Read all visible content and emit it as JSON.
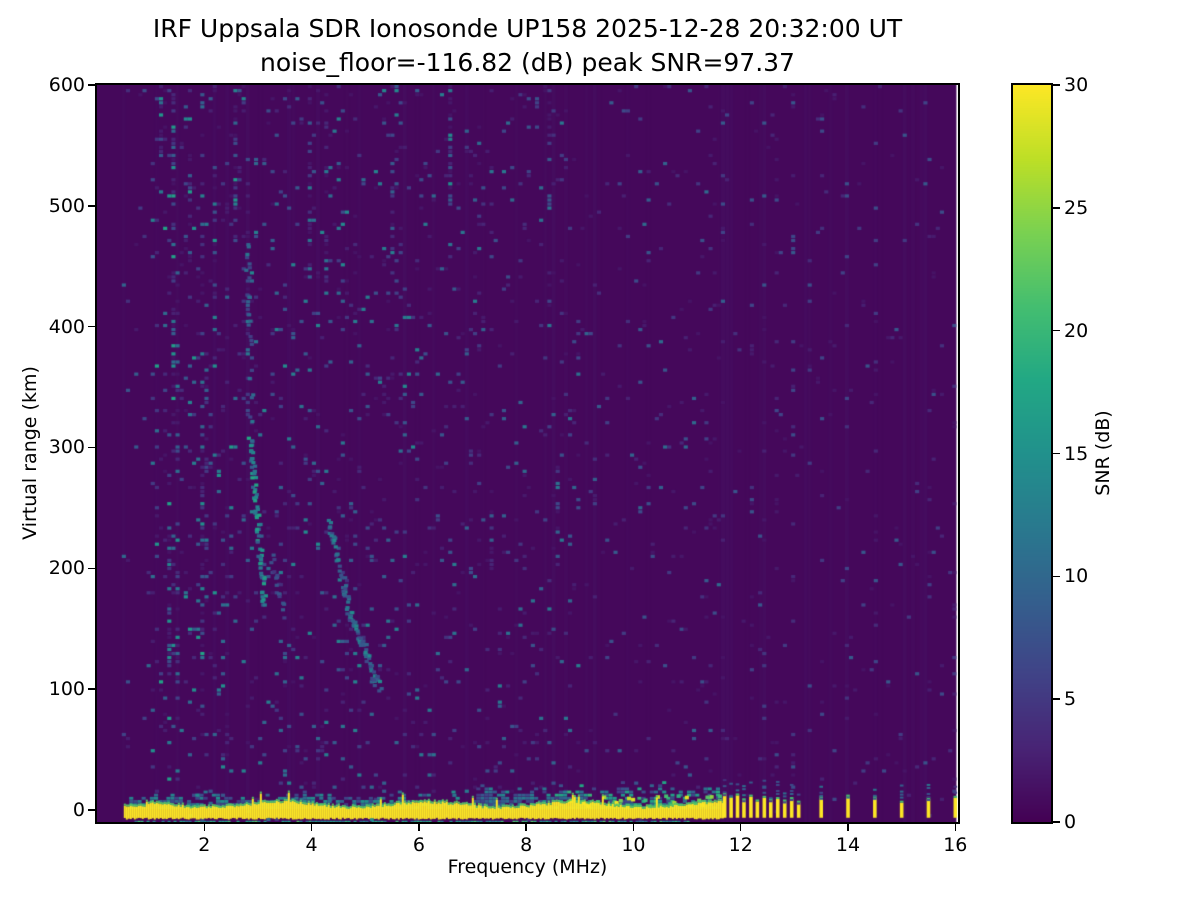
{
  "chart_data": {
    "type": "heatmap",
    "title": "IRF Uppsala SDR Ionosonde UP158 2025-12-28 20:32:00  UT",
    "subtitle": "noise_floor=-116.82 (dB) peak SNR=97.37",
    "station": "UP158",
    "timestamp_ut": "2025-12-28 20:32:00",
    "noise_floor_db": -116.82,
    "peak_snr_db": 97.37,
    "xlabel": "Frequency (MHz)",
    "ylabel": "Virtual range (km)",
    "xlim": [
      0,
      16.05
    ],
    "ylim": [
      -10,
      600
    ],
    "xticks": [
      2,
      4,
      6,
      8,
      10,
      12,
      14,
      16
    ],
    "yticks": [
      0,
      100,
      200,
      300,
      400,
      500,
      600
    ],
    "colormap": "viridis",
    "colorbar": {
      "label": "SNR (dB)",
      "min": 0,
      "max": 30,
      "ticks": [
        0,
        5,
        10,
        15,
        20,
        25,
        30
      ]
    },
    "features": {
      "seed": 11,
      "data_f_max": 16.02,
      "speckle_regions": [
        {
          "f0": 0.0,
          "f1": 0.45,
          "p": 0.0,
          "m": 6
        },
        {
          "f0": 0.45,
          "f1": 1.0,
          "p": 0.03,
          "m": 10
        },
        {
          "f0": 1.0,
          "f1": 2.6,
          "p": 0.085,
          "m": 16
        },
        {
          "f0": 2.6,
          "f1": 6.0,
          "p": 0.07,
          "m": 13
        },
        {
          "f0": 6.0,
          "f1": 9.0,
          "p": 0.05,
          "m": 11
        },
        {
          "f0": 9.0,
          "f1": 11.65,
          "p": 0.04,
          "m": 9
        },
        {
          "f0": 11.65,
          "f1": 16.02,
          "p": 0.013,
          "m": 7
        }
      ],
      "ground_band": {
        "f_start": 0.5,
        "f_end": 11.65,
        "y_bottom": -6.5,
        "y_top_base": 3.0,
        "snr": 30
      },
      "band_fuzz": {
        "f_start": 0.6,
        "f_end": 11.6,
        "base_top": 13,
        "extra_top_f": 7.0,
        "extra_top": 8
      },
      "bright_fringe": {
        "f_start": 8.8,
        "f_end": 11.6,
        "p": 0.55,
        "y0": 4,
        "y1": 13,
        "snr": [
          18,
          30
        ]
      },
      "sub_line": {
        "f_start": 0.7,
        "f_end": 11.2,
        "y": -9,
        "density": 0.7,
        "snr": [
          10,
          22
        ]
      },
      "pulses": [
        {
          "f": 11.7,
          "h": 13
        },
        {
          "f": 11.82,
          "h": 10
        },
        {
          "f": 11.94,
          "h": 12
        },
        {
          "f": 12.06,
          "h": 8
        },
        {
          "f": 12.19,
          "h": 11
        },
        {
          "f": 12.31,
          "h": 7
        },
        {
          "f": 12.44,
          "h": 10
        },
        {
          "f": 12.56,
          "h": 8
        },
        {
          "f": 12.69,
          "h": 9
        },
        {
          "f": 12.82,
          "h": 7
        },
        {
          "f": 12.95,
          "h": 9
        },
        {
          "f": 13.08,
          "h": 6
        },
        {
          "f": 13.5,
          "h": 10
        },
        {
          "f": 14.0,
          "h": 11
        },
        {
          "f": 14.5,
          "h": 10
        },
        {
          "f": 15.0,
          "h": 6
        },
        {
          "f": 15.5,
          "h": 9
        },
        {
          "f": 16.0,
          "h": 10
        }
      ],
      "stripes": [
        {
          "f": 11.7,
          "w": 0.07,
          "p": 0.1,
          "m": 8,
          "y0": -10,
          "y1": 600
        },
        {
          "f": 11.94,
          "w": 0.07,
          "p": 0.09,
          "m": 7,
          "y0": -10,
          "y1": 600
        },
        {
          "f": 12.19,
          "w": 0.07,
          "p": 0.09,
          "m": 7,
          "y0": -10,
          "y1": 600
        },
        {
          "f": 12.44,
          "w": 0.07,
          "p": 0.08,
          "m": 7,
          "y0": -10,
          "y1": 600
        },
        {
          "f": 12.69,
          "w": 0.07,
          "p": 0.08,
          "m": 7,
          "y0": -10,
          "y1": 600
        },
        {
          "f": 12.95,
          "w": 0.07,
          "p": 0.08,
          "m": 7,
          "y0": -10,
          "y1": 600
        },
        {
          "f": 13.5,
          "w": 0.06,
          "p": 0.05,
          "m": 6,
          "y0": -10,
          "y1": 600
        },
        {
          "f": 14.0,
          "w": 0.06,
          "p": 0.05,
          "m": 6,
          "y0": -10,
          "y1": 600
        },
        {
          "f": 14.5,
          "w": 0.06,
          "p": 0.05,
          "m": 6,
          "y0": -10,
          "y1": 600
        },
        {
          "f": 15.0,
          "w": 0.06,
          "p": 0.04,
          "m": 6,
          "y0": -10,
          "y1": 600
        },
        {
          "f": 15.5,
          "w": 0.06,
          "p": 0.05,
          "m": 6,
          "y0": -10,
          "y1": 600
        },
        {
          "f": 16.0,
          "w": 0.06,
          "p": 0.04,
          "m": 6,
          "y0": -10,
          "y1": 600
        },
        {
          "f": 13.27,
          "w": 0.05,
          "p": 0.035,
          "m": 5,
          "y0": -10,
          "y1": 600
        },
        {
          "f": 13.77,
          "w": 0.05,
          "p": 0.035,
          "m": 5,
          "y0": -10,
          "y1": 600
        },
        {
          "f": 14.27,
          "w": 0.05,
          "p": 0.03,
          "m": 5,
          "y0": -10,
          "y1": 600
        },
        {
          "f": 14.77,
          "w": 0.05,
          "p": 0.03,
          "m": 5,
          "y0": -10,
          "y1": 600
        },
        {
          "f": 15.27,
          "w": 0.05,
          "p": 0.03,
          "m": 5,
          "y0": -10,
          "y1": 600
        },
        {
          "f": 15.77,
          "w": 0.05,
          "p": 0.03,
          "m": 5,
          "y0": -10,
          "y1": 600
        },
        {
          "f": 1.18,
          "w": 0.09,
          "p": 0.45,
          "m": 16,
          "y0": 520,
          "y1": 600
        },
        {
          "f": 1.45,
          "w": 0.1,
          "p": 0.4,
          "m": 16,
          "y0": 330,
          "y1": 600
        },
        {
          "f": 1.52,
          "w": 0.08,
          "p": 0.22,
          "m": 12,
          "y0": 90,
          "y1": 430
        },
        {
          "f": 1.72,
          "w": 0.07,
          "p": 0.25,
          "m": 13,
          "y0": 420,
          "y1": 600
        },
        {
          "f": 1.95,
          "w": 0.09,
          "p": 0.28,
          "m": 14,
          "y0": 60,
          "y1": 600
        },
        {
          "f": 2.22,
          "w": 0.08,
          "p": 0.28,
          "m": 12,
          "y0": 370,
          "y1": 560
        },
        {
          "f": 2.56,
          "w": 0.08,
          "p": 0.3,
          "m": 13,
          "y0": 470,
          "y1": 600
        },
        {
          "f": 2.78,
          "w": 0.07,
          "p": 0.22,
          "m": 11,
          "y0": 300,
          "y1": 500
        },
        {
          "f": 3.95,
          "w": 0.07,
          "p": 0.28,
          "m": 12,
          "y0": 460,
          "y1": 600
        },
        {
          "f": 4.3,
          "w": 0.07,
          "p": 0.22,
          "m": 11,
          "y0": 420,
          "y1": 600
        },
        {
          "f": 5.5,
          "w": 0.06,
          "p": 0.18,
          "m": 9,
          "y0": 430,
          "y1": 560
        },
        {
          "f": 6.62,
          "w": 0.08,
          "p": 0.55,
          "m": 16,
          "y0": 500,
          "y1": 600
        },
        {
          "f": 6.55,
          "w": 0.06,
          "p": 0.16,
          "m": 9,
          "y0": 290,
          "y1": 420
        },
        {
          "f": 7.35,
          "w": 0.06,
          "p": 0.25,
          "m": 10,
          "y0": 190,
          "y1": 260
        },
        {
          "f": 8.45,
          "w": 0.06,
          "p": 0.22,
          "m": 11,
          "y0": 450,
          "y1": 600
        },
        {
          "f": 8.6,
          "w": 0.07,
          "p": 0.3,
          "m": 12,
          "y0": 200,
          "y1": 290
        },
        {
          "f": 9.3,
          "w": 0.05,
          "p": 0.16,
          "m": 8,
          "y0": 230,
          "y1": 330
        },
        {
          "f": 2.05,
          "w": 0.06,
          "p": 0.2,
          "m": 10,
          "y0": 150,
          "y1": 360
        },
        {
          "f": 1.35,
          "w": 0.06,
          "p": 0.25,
          "m": 12,
          "y0": 100,
          "y1": 300
        }
      ],
      "traces": [
        {
          "from": [
            2.87,
            310
          ],
          "to": [
            3.13,
            170
          ],
          "w": 0.09,
          "density": 0.8,
          "snr": [
            8,
            18
          ]
        },
        {
          "from": [
            2.8,
            470
          ],
          "to": [
            2.9,
            315
          ],
          "w": 0.07,
          "density": 0.35,
          "snr": [
            5,
            12
          ]
        },
        {
          "from": [
            4.33,
            240
          ],
          "to": [
            4.73,
            162
          ],
          "w": 0.08,
          "density": 0.55,
          "snr": [
            6,
            14
          ]
        },
        {
          "from": [
            4.73,
            162
          ],
          "to": [
            5.28,
            102
          ],
          "w": 0.08,
          "density": 0.6,
          "snr": [
            6,
            15
          ]
        },
        {
          "from": [
            3.28,
            210
          ],
          "to": [
            3.52,
            158
          ],
          "w": 0.06,
          "density": 0.25,
          "snr": [
            4,
            10
          ]
        }
      ]
    }
  }
}
